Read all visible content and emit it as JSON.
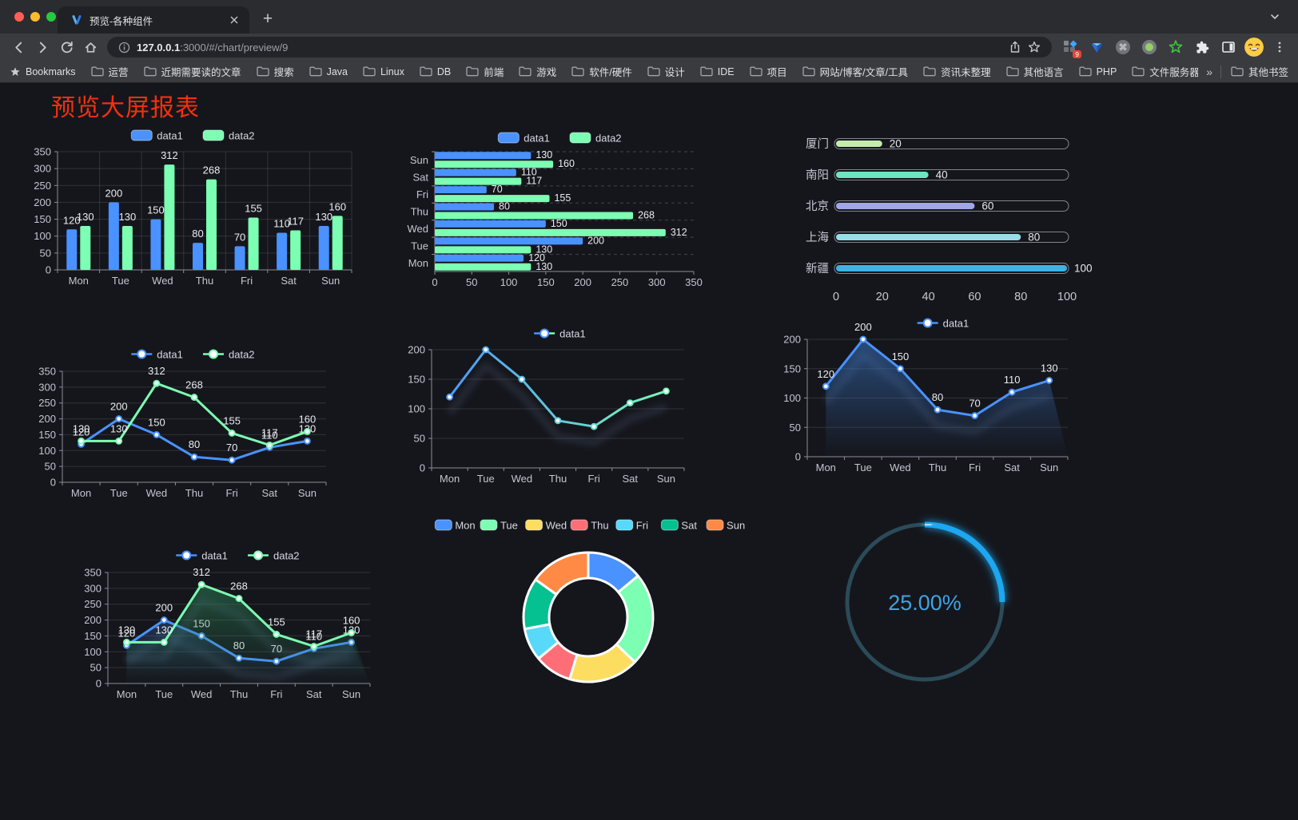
{
  "browser": {
    "tab_title": "预览-各种组件",
    "url_host": "127.0.0.1",
    "url_rest": ":3000/#/chart/preview/9",
    "bookmarks_label": "Bookmarks",
    "bookmarks": [
      "运营",
      "近期需要读的文章",
      "搜索",
      "Java",
      "Linux",
      "DB",
      "前端",
      "游戏",
      "软件/硬件",
      "设计",
      "IDE",
      "项目",
      "网站/博客/文章/工具",
      "资讯未整理",
      "其他语言",
      "PHP",
      "文件服务器"
    ],
    "overflow_chevron": "»",
    "other_bookmarks": "其他书签",
    "extension_badge": "9"
  },
  "page": {
    "title": "预览大屏报表",
    "title_color": "#f4300e"
  },
  "chart_data": [
    {
      "id": "c1",
      "type": "bar",
      "legend_style": "rect",
      "categories": [
        "Mon",
        "Tue",
        "Wed",
        "Thu",
        "Fri",
        "Sat",
        "Sun"
      ],
      "series": [
        {
          "name": "data1",
          "color": "#4992ff",
          "values": [
            120,
            200,
            150,
            80,
            70,
            110,
            130
          ]
        },
        {
          "name": "data2",
          "color": "#7cffb2",
          "values": [
            130,
            130,
            312,
            268,
            155,
            117,
            160
          ]
        }
      ],
      "ylim": [
        0,
        350
      ],
      "ytick_step": 50,
      "value_labels": true,
      "vertical_grid": true
    },
    {
      "id": "c2",
      "type": "bar-horizontal",
      "legend_style": "rect",
      "display_order": "sun-top",
      "categories": [
        "Mon",
        "Tue",
        "Wed",
        "Thu",
        "Fri",
        "Sat",
        "Sun"
      ],
      "series": [
        {
          "name": "data1",
          "color": "#4992ff",
          "values": [
            120,
            200,
            150,
            80,
            70,
            110,
            130
          ]
        },
        {
          "name": "data2",
          "color": "#7cffb2",
          "values": [
            130,
            130,
            312,
            268,
            155,
            117,
            160
          ]
        }
      ],
      "xlim": [
        0,
        350
      ],
      "xtick_step": 50,
      "value_labels": true
    },
    {
      "id": "c3",
      "type": "progress-bars",
      "rows": [
        {
          "label": "厦门",
          "value": 20,
          "color": "#c4ebad"
        },
        {
          "label": "南阳",
          "value": 40,
          "color": "#6be6c1"
        },
        {
          "label": "北京",
          "value": 60,
          "color": "#a0a7e6"
        },
        {
          "label": "上海",
          "value": 80,
          "color": "#96dee8"
        },
        {
          "label": "新疆",
          "value": 100,
          "color": "#3fb1e3"
        }
      ],
      "xlim": [
        0,
        100
      ],
      "xticks": [
        0,
        20,
        40,
        60,
        80,
        100
      ]
    },
    {
      "id": "c4",
      "type": "line",
      "legend_style": "line",
      "categories": [
        "Mon",
        "Tue",
        "Wed",
        "Thu",
        "Fri",
        "Sat",
        "Sun"
      ],
      "series": [
        {
          "name": "data1",
          "color": "#4992ff",
          "values": [
            120,
            200,
            150,
            80,
            70,
            110,
            130
          ]
        },
        {
          "name": "data2",
          "color": "#7cffb2",
          "values": [
            130,
            130,
            312,
            268,
            155,
            117,
            160
          ]
        }
      ],
      "ylim": [
        0,
        350
      ],
      "ytick_step": 50,
      "value_labels": true
    },
    {
      "id": "c5",
      "type": "line",
      "legend_style": "line",
      "shadow": true,
      "categories": [
        "Mon",
        "Tue",
        "Wed",
        "Thu",
        "Fri",
        "Sat",
        "Sun"
      ],
      "series": [
        {
          "name": "data1",
          "color": "#4992ff",
          "gradient": [
            "#4992ff",
            "#7cffb2"
          ],
          "values": [
            120,
            200,
            150,
            80,
            70,
            110,
            130
          ]
        }
      ],
      "ylim": [
        0,
        200
      ],
      "ytick_step": 50,
      "value_labels": false
    },
    {
      "id": "c6",
      "type": "area",
      "legend_style": "line",
      "shadow": true,
      "categories": [
        "Mon",
        "Tue",
        "Wed",
        "Thu",
        "Fri",
        "Sat",
        "Sun"
      ],
      "series": [
        {
          "name": "data1",
          "color": "#4992ff",
          "area_color": "#3a78c9",
          "values": [
            120,
            200,
            150,
            80,
            70,
            110,
            130
          ]
        }
      ],
      "ylim": [
        0,
        200
      ],
      "ytick_step": 50,
      "value_labels": true
    },
    {
      "id": "c7",
      "type": "area",
      "legend_style": "line",
      "shadow": true,
      "categories": [
        "Mon",
        "Tue",
        "Wed",
        "Thu",
        "Fri",
        "Sat",
        "Sun"
      ],
      "series": [
        {
          "name": "data1",
          "color": "#4992ff",
          "area_color": "#3c6ec0",
          "values": [
            120,
            200,
            150,
            80,
            70,
            110,
            130
          ]
        },
        {
          "name": "data2",
          "color": "#7cffb2",
          "area_color": "#2e8c5c",
          "values": [
            130,
            130,
            312,
            268,
            155,
            117,
            160
          ]
        }
      ],
      "ylim": [
        0,
        350
      ],
      "ytick_step": 50,
      "value_labels": true
    },
    {
      "id": "c8",
      "type": "pie",
      "items": [
        {
          "label": "Mon",
          "value": 120,
          "color": "#4992ff"
        },
        {
          "label": "Tue",
          "value": 200,
          "color": "#7cffb2"
        },
        {
          "label": "Wed",
          "value": 150,
          "color": "#fddd60"
        },
        {
          "label": "Thu",
          "value": 80,
          "color": "#ff6e76"
        },
        {
          "label": "Fri",
          "value": 70,
          "color": "#58d9f9"
        },
        {
          "label": "Sat",
          "value": 110,
          "color": "#05c091"
        },
        {
          "label": "Sun",
          "value": 130,
          "color": "#ff8a45"
        }
      ]
    },
    {
      "id": "c9",
      "type": "ring-progress",
      "value": 25,
      "label": "25.00%",
      "color": "#1ea7f0",
      "track_color": "#2b4b58",
      "text_color": "#3ea4e4"
    }
  ]
}
